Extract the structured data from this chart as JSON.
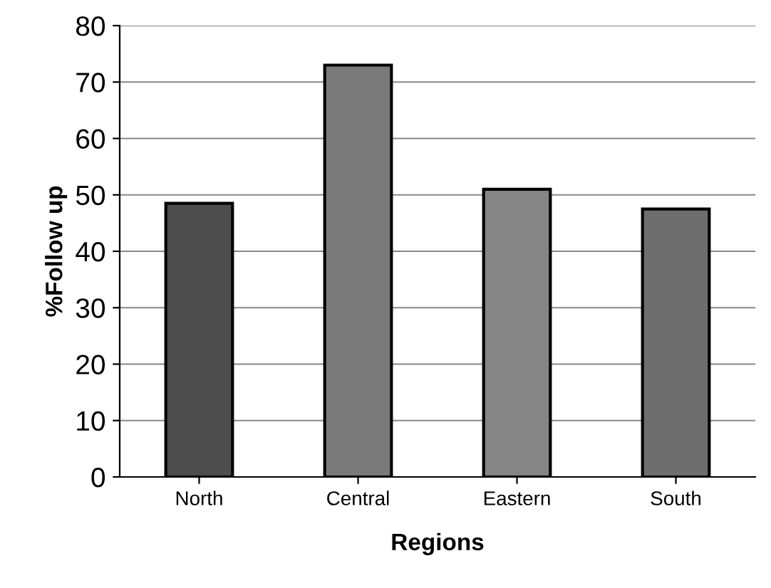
{
  "chart_data": {
    "type": "bar",
    "xlabel": "Regions",
    "ylabel": "%Follow up",
    "categories": [
      "North",
      "Central",
      "Eastern",
      "South"
    ],
    "values": [
      48.5,
      73,
      51,
      47.5
    ],
    "colors": [
      "#4d4d4d",
      "#7a7a7a",
      "#858585",
      "#6e6e6e"
    ],
    "ylim": [
      0,
      80
    ],
    "yticks": [
      0,
      10,
      20,
      30,
      40,
      50,
      60,
      70,
      80
    ],
    "grid": "y",
    "legend": false
  }
}
